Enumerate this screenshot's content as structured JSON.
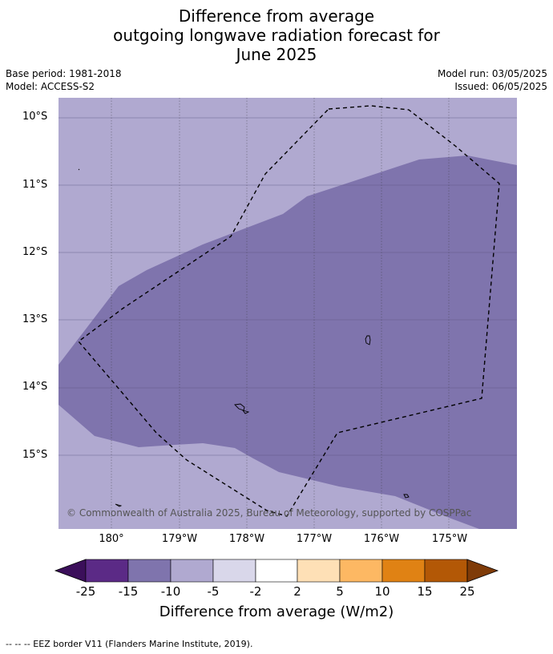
{
  "title": {
    "line1": "Difference from average",
    "line2": "outgoing longwave radiation forecast for",
    "line3": "June 2025"
  },
  "meta": {
    "base_period": "Base period: 1981-2018",
    "model": "Model: ACCESS-S2",
    "model_run": "Model run: 03/05/2025",
    "issued": "Issued: 06/05/2025"
  },
  "map": {
    "lat_labels": [
      "10°S",
      "11°S",
      "12°S",
      "13°S",
      "14°S",
      "15°S"
    ],
    "lon_labels": [
      "180°",
      "179°W",
      "178°W",
      "177°W",
      "176°W",
      "175°W"
    ],
    "regions": [
      {
        "name": "background",
        "category": "-10 to -5",
        "color": "#b0a9d0"
      },
      {
        "name": "anomaly-band",
        "category": "-15 to -10",
        "color": "#7f74ad"
      }
    ],
    "copyright": "© Commonwealth of Australia 2025, Bureau of Meteorology, supported by COSPPac"
  },
  "colorbar": {
    "colors": [
      "#3b0f5a",
      "#5b2a86",
      "#7f74ad",
      "#b0a9d0",
      "#d9d7ea",
      "#ffffff",
      "#fee0b6",
      "#fdb863",
      "#e08214",
      "#b35806",
      "#7f3b08"
    ],
    "labels": [
      "-25",
      "-15",
      "-10",
      "-5",
      "-2",
      "2",
      "5",
      "10",
      "15",
      "25"
    ],
    "title": "Difference from average (W/m2)"
  },
  "footnote": "--  --  -- EEZ border V11 (Flanders Marine Institute, 2019)."
}
